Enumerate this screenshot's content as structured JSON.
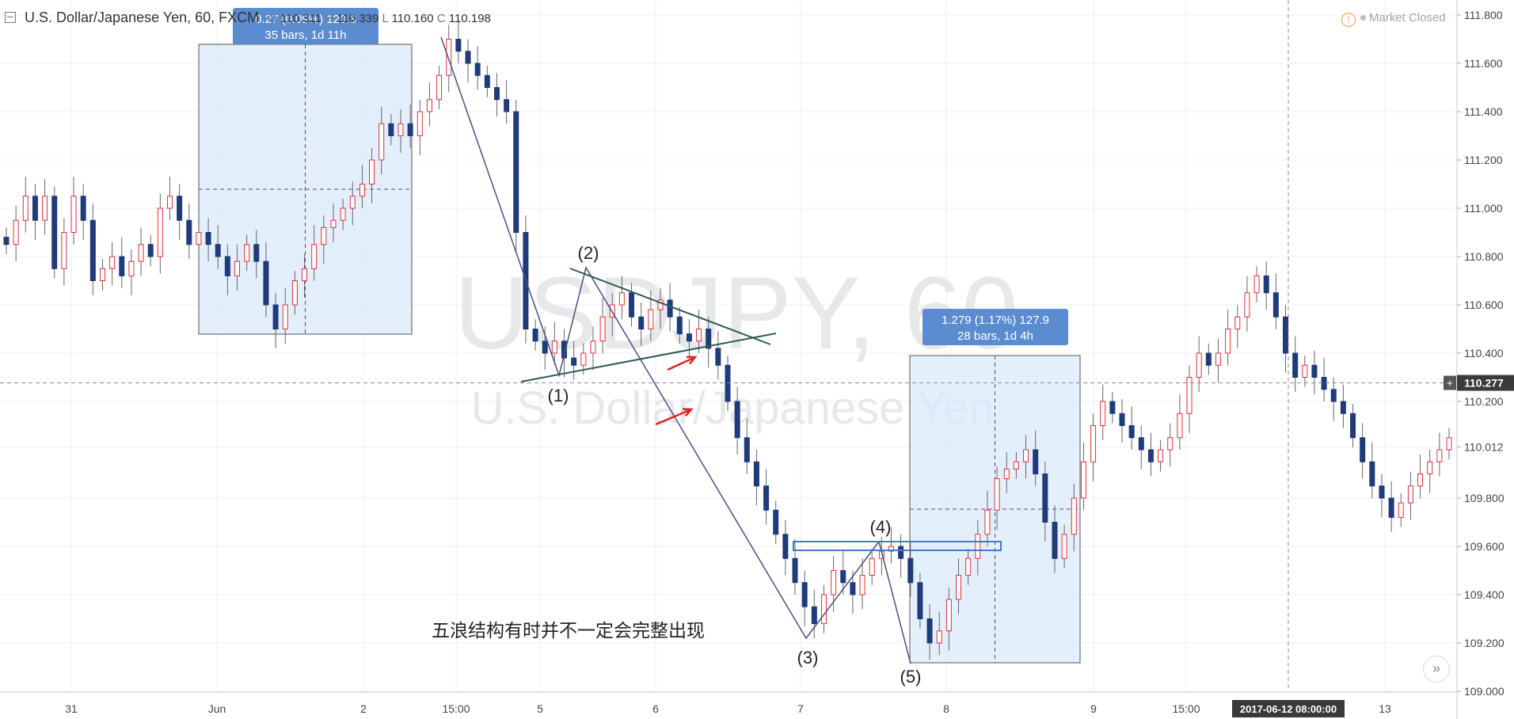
{
  "header": {
    "title": "U.S. Dollar/Japanese Yen, 60, FXCM",
    "ohlc": {
      "o_label": "O",
      "o": "110.311",
      "h_label": "H",
      "h": "110.339",
      "l_label": "L",
      "l": "110.160",
      "c_label": "C",
      "c": "110.198"
    }
  },
  "status": {
    "market": "Market Closed"
  },
  "watermark": {
    "symbol": "USDJPY, 60",
    "name": "U.S. Dollar/Japanese Yen"
  },
  "price_axis": {
    "labels": [
      "111.800",
      "111.600",
      "111.400",
      "111.200",
      "111.000",
      "110.800",
      "110.600",
      "110.400",
      "110.200",
      "110.012",
      "109.800",
      "109.600",
      "109.400",
      "109.200",
      "109.000"
    ],
    "current_price": "110.277"
  },
  "time_axis": {
    "labels": [
      "31",
      "Jun",
      "2",
      "15:00",
      "5",
      "6",
      "7",
      "8",
      "9",
      "15:00",
      "13"
    ],
    "cursor_label": "2017-06-12 08:00:00"
  },
  "measures": [
    {
      "line1": "0.27 (0.09%) 120.3",
      "line2": "35 bars, 1d 11h"
    },
    {
      "line1": "1.279 (1.17%) 127.9",
      "line2": "28 bars, 1d 4h"
    }
  ],
  "wave_labels": [
    "(1)",
    "(2)",
    "(3)",
    "(4)",
    "(5)"
  ],
  "annotation": "五浪结构有时并不一定会完整出现",
  "chart_data": {
    "type": "candlestick",
    "symbol": "USDJPY",
    "interval": "60",
    "ylim": [
      109.0,
      111.85
    ],
    "current_price": 110.277,
    "closes": [
      110.85,
      110.95,
      111.05,
      110.95,
      111.05,
      110.75,
      110.9,
      111.05,
      110.95,
      110.7,
      110.75,
      110.8,
      110.72,
      110.78,
      110.85,
      110.8,
      111.0,
      111.05,
      110.95,
      110.85,
      110.9,
      110.85,
      110.8,
      110.72,
      110.78,
      110.85,
      110.78,
      110.6,
      110.5,
      110.6,
      110.7,
      110.75,
      110.85,
      110.92,
      110.95,
      111.0,
      111.05,
      111.1,
      111.2,
      111.35,
      111.3,
      111.35,
      111.3,
      111.4,
      111.45,
      111.55,
      111.7,
      111.65,
      111.6,
      111.55,
      111.5,
      111.45,
      111.4,
      110.9,
      110.5,
      110.45,
      110.4,
      110.45,
      110.38,
      110.35,
      110.4,
      110.45,
      110.55,
      110.6,
      110.65,
      110.55,
      110.5,
      110.58,
      110.62,
      110.55,
      110.48,
      110.45,
      110.5,
      110.42,
      110.35,
      110.2,
      110.05,
      109.95,
      109.85,
      109.75,
      109.65,
      109.55,
      109.45,
      109.35,
      109.28,
      109.4,
      109.5,
      109.45,
      109.4,
      109.48,
      109.55,
      109.58,
      109.6,
      109.55,
      109.45,
      109.3,
      109.2,
      109.25,
      109.38,
      109.48,
      109.55,
      109.65,
      109.75,
      109.88,
      109.92,
      109.95,
      110.0,
      109.9,
      109.7,
      109.55,
      109.65,
      109.8,
      109.95,
      110.1,
      110.2,
      110.15,
      110.1,
      110.05,
      110.0,
      109.95,
      110.0,
      110.05,
      110.15,
      110.3,
      110.4,
      110.35,
      110.4,
      110.5,
      110.55,
      110.65,
      110.72,
      110.65,
      110.55,
      110.4,
      110.3,
      110.35,
      110.3,
      110.25,
      110.2,
      110.15,
      110.05,
      109.95,
      109.85,
      109.8,
      109.72,
      109.78,
      109.85,
      109.9,
      109.95,
      110.0,
      110.05
    ]
  }
}
